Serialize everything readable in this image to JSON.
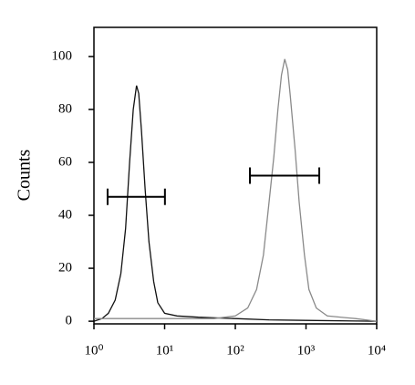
{
  "chart_data": {
    "type": "line",
    "y_label": "Counts",
    "xscale": "log",
    "xlim": [
      1,
      10000
    ],
    "ylim": [
      -1,
      111
    ],
    "xticks": [
      {
        "value": 1,
        "label": "10⁰"
      },
      {
        "value": 10,
        "label": "10¹"
      },
      {
        "value": 100,
        "label": "10²"
      },
      {
        "value": 1000,
        "label": "10³"
      },
      {
        "value": 10000,
        "label": "10⁴"
      }
    ],
    "yticks": [
      0,
      20,
      40,
      60,
      80,
      100
    ],
    "series": [
      {
        "color": "#111111",
        "x": [
          1,
          1.3,
          1.6,
          2,
          2.4,
          2.8,
          3.2,
          3.6,
          4,
          4.3,
          4.7,
          5.3,
          6,
          7,
          8,
          10,
          15,
          30,
          100,
          300,
          1000,
          10000
        ],
        "values": [
          0,
          1,
          3,
          8,
          18,
          35,
          60,
          80,
          89,
          86,
          72,
          50,
          30,
          15,
          7,
          3,
          2,
          1.5,
          1,
          0.5,
          0.3,
          0
        ]
      },
      {
        "color": "#8a8a8a",
        "x": [
          1,
          10,
          50,
          100,
          150,
          200,
          250,
          300,
          350,
          400,
          450,
          500,
          550,
          600,
          700,
          800,
          950,
          1100,
          1400,
          2000,
          5000,
          10000
        ],
        "values": [
          1,
          1,
          1,
          2,
          5,
          12,
          25,
          45,
          62,
          80,
          93,
          99,
          95,
          85,
          65,
          45,
          25,
          12,
          5,
          2,
          1,
          0
        ]
      }
    ],
    "gates": [
      {
        "x": [
          1.56,
          10.1
        ],
        "y": 47
      },
      {
        "x": [
          161,
          1540
        ],
        "y": 55
      }
    ]
  }
}
